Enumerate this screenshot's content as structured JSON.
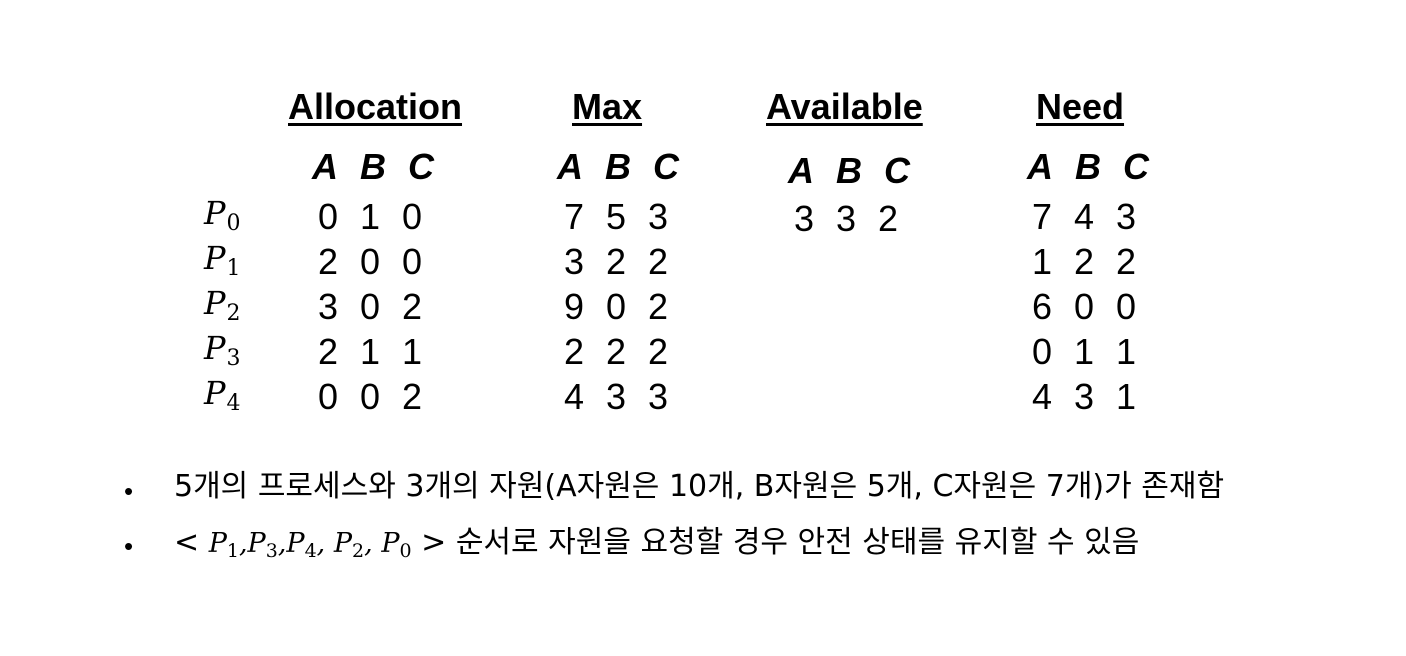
{
  "columns": [
    {
      "id": "allocation",
      "title": "Allocation",
      "headers": [
        "A",
        "B",
        "C"
      ],
      "rows": [
        [
          "0",
          "1",
          "0"
        ],
        [
          "2",
          "0",
          "0"
        ],
        [
          "3",
          "0",
          "2"
        ],
        [
          "2",
          "1",
          "1"
        ],
        [
          "0",
          "0",
          "2"
        ]
      ]
    },
    {
      "id": "max",
      "title": "Max",
      "headers": [
        "A",
        "B",
        "C"
      ],
      "rows": [
        [
          "7",
          "5",
          "3"
        ],
        [
          "3",
          "2",
          "2"
        ],
        [
          "9",
          "0",
          "2"
        ],
        [
          "2",
          "2",
          "2"
        ],
        [
          "4",
          "3",
          "3"
        ]
      ]
    },
    {
      "id": "available",
      "title": "Available",
      "headers": [
        "A",
        "B",
        "C"
      ],
      "rows": [
        [
          "3",
          "3",
          "2"
        ]
      ]
    },
    {
      "id": "need",
      "title": "Need",
      "headers": [
        "A",
        "B",
        "C"
      ],
      "rows": [
        [
          "7",
          "4",
          "3"
        ],
        [
          "1",
          "2",
          "2"
        ],
        [
          "6",
          "0",
          "0"
        ],
        [
          "0",
          "1",
          "1"
        ],
        [
          "4",
          "3",
          "1"
        ]
      ]
    }
  ],
  "processes": [
    {
      "letter": "P",
      "index": "0"
    },
    {
      "letter": "P",
      "index": "1"
    },
    {
      "letter": "P",
      "index": "2"
    },
    {
      "letter": "P",
      "index": "3"
    },
    {
      "letter": "P",
      "index": "4"
    }
  ],
  "bullets": {
    "marker": "•",
    "first": "5개의 프로세스와 3개의 자원(A자원은 10개, B자원은 5개, C자원은 7개)가 존재함",
    "second": {
      "open": "<",
      "sequence": [
        {
          "letter": "P",
          "index": "1",
          "sep": ","
        },
        {
          "letter": "P",
          "index": "3",
          "sep": ","
        },
        {
          "letter": "P",
          "index": "4",
          "sep": ","
        },
        {
          "letter": "P",
          "index": "2",
          "sep": ","
        },
        {
          "letter": "P",
          "index": "0",
          "sep": ""
        }
      ],
      "close": ">",
      "text": "순서로 자원을 요청할 경우 안전 상태를 유지할 수 있음"
    }
  }
}
